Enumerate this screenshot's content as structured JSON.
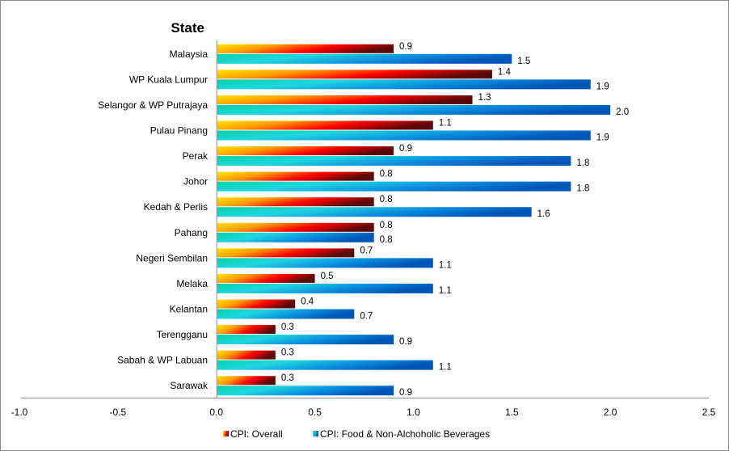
{
  "chart_data": {
    "type": "bar",
    "orientation": "horizontal",
    "title": "",
    "ylabel": "State",
    "xlabel": "",
    "xlim": [
      -1.0,
      2.5
    ],
    "xticks": [
      "-1.0",
      "-0.5",
      "0.0",
      "0.5",
      "1.0",
      "1.5",
      "2.0",
      "2.5"
    ],
    "xtick_values": [
      -1.0,
      -0.5,
      0.0,
      0.5,
      1.0,
      1.5,
      2.0,
      2.5
    ],
    "grid": false,
    "legend_position": "bottom",
    "categories": [
      "Malaysia",
      "WP Kuala Lumpur",
      "Selangor & WP Putrajaya",
      "Pulau Pinang",
      "Perak",
      "Johor",
      "Kedah & Perlis",
      "Pahang",
      "Negeri Sembilan",
      "Melaka",
      "Kelantan",
      "Terengganu",
      "Sabah & WP Labuan",
      "Sarawak"
    ],
    "series": [
      {
        "name": "CPI: Overall",
        "colors": [
          "#ffe600",
          "#ff9a00",
          "#ff0000",
          "#5a0a0a"
        ],
        "values": [
          0.9,
          1.4,
          1.3,
          1.1,
          0.9,
          0.8,
          0.8,
          0.8,
          0.7,
          0.5,
          0.4,
          0.3,
          0.3,
          0.3
        ],
        "labels": [
          "0.9",
          "1.4",
          "1.3",
          "1.1",
          "0.9",
          "0.8",
          "0.8",
          "0.8",
          "0.7",
          "0.5",
          "0.4",
          "0.3",
          "0.3",
          "0.3"
        ]
      },
      {
        "name": "CPI: Food & Non-Alchoholic Beverages",
        "colors": [
          "#06d3a8",
          "#1fd6e0",
          "#0a8fe0",
          "#0055b8"
        ],
        "values": [
          1.5,
          1.9,
          2.0,
          1.9,
          1.8,
          1.8,
          1.6,
          0.8,
          1.1,
          1.1,
          0.7,
          0.9,
          1.1,
          0.9
        ],
        "labels": [
          "1.5",
          "1.9",
          "2.0",
          "1.9",
          "1.8",
          "1.8",
          "1.6",
          "0.8",
          "1.1",
          "1.1",
          "0.7",
          "0.9",
          "1.1",
          "0.9"
        ]
      }
    ]
  }
}
